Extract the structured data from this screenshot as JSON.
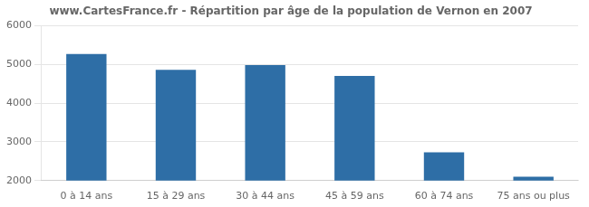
{
  "chart_data": {
    "type": "bar",
    "title": "www.CartesFrance.fr - Répartition par âge de la population de Vernon en 2007",
    "categories": [
      "0 à 14 ans",
      "15 à 29 ans",
      "30 à 44 ans",
      "45 à 59 ans",
      "60 à 74 ans",
      "75 ans ou plus"
    ],
    "values": [
      5270,
      4860,
      4980,
      4700,
      2730,
      2100
    ],
    "color": "#2e6ea6",
    "ylim": [
      2000,
      6000
    ],
    "yticks": [
      2000,
      3000,
      4000,
      5000,
      6000
    ],
    "grid": true
  }
}
